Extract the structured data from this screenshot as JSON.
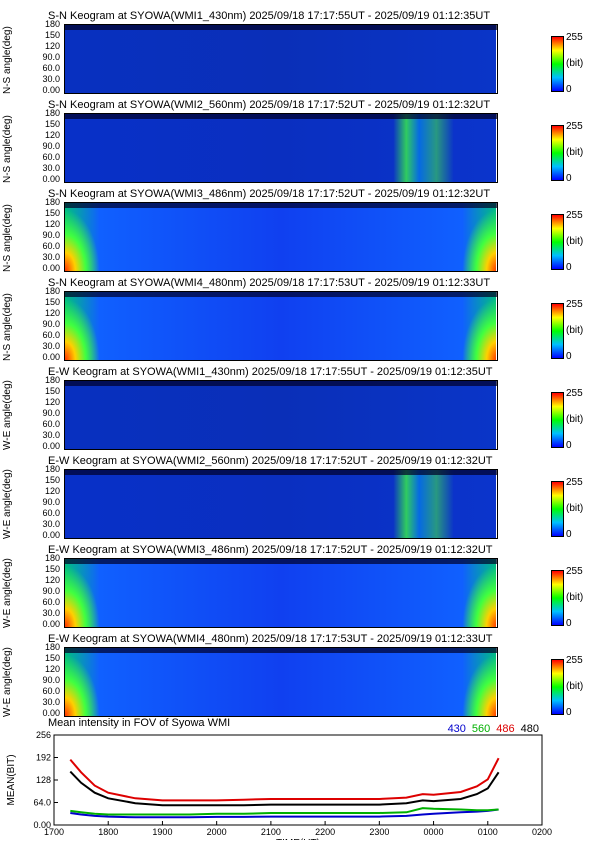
{
  "keograms": [
    {
      "title": "S-N Keogram at SYOWA(WMI1_430nm)    2025/09/18 17:17:55UT - 2025/09/19 01:12:35UT",
      "ylabel": "N-S angle(deg)",
      "variant": "dark"
    },
    {
      "title": "S-N Keogram at SYOWA(WMI2_560nm)    2025/09/18 17:17:52UT - 2025/09/19 01:12:32UT",
      "ylabel": "N-S angle(deg)",
      "variant": "aurora"
    },
    {
      "title": "S-N Keogram at SYOWA(WMI3_486nm)    2025/09/18 17:17:52UT - 2025/09/19 01:12:32UT",
      "ylabel": "N-S angle(deg)",
      "variant": "bright"
    },
    {
      "title": "S-N Keogram at SYOWA(WMI4_480nm)    2025/09/18 17:17:53UT - 2025/09/19 01:12:33UT",
      "ylabel": "N-S angle(deg)",
      "variant": "bright"
    },
    {
      "title": "E-W Keogram at SYOWA(WMI1_430nm)    2025/09/18 17:17:55UT - 2025/09/19 01:12:35UT",
      "ylabel": "W-E angle(deg)",
      "variant": "dark"
    },
    {
      "title": "E-W Keogram at SYOWA(WMI2_560nm)    2025/09/18 17:17:52UT - 2025/09/19 01:12:32UT",
      "ylabel": "W-E angle(deg)",
      "variant": "aurora"
    },
    {
      "title": "E-W Keogram at SYOWA(WMI3_486nm)    2025/09/18 17:17:52UT - 2025/09/19 01:12:32UT",
      "ylabel": "W-E angle(deg)",
      "variant": "bright"
    },
    {
      "title": "E-W Keogram at SYOWA(WMI4_480nm)    2025/09/18 17:17:53UT - 2025/09/19 01:12:33UT",
      "ylabel": "W-E angle(deg)",
      "variant": "bright"
    }
  ],
  "keogram_yticks": [
    "180",
    "150",
    "120",
    "90.0",
    "60.0",
    "30.0",
    "0.00"
  ],
  "colorbar": {
    "max": "255",
    "unit": "(bit)",
    "min": "0"
  },
  "chart_data": {
    "type": "line",
    "title": "Mean intensity in FOV of Syowa WMI",
    "xlabel": "TIME(UT)",
    "ylabel": "MEAN(BIT)",
    "x_ticks": [
      "1700",
      "1800",
      "1900",
      "2000",
      "2100",
      "2200",
      "2300",
      "0000",
      "0100",
      "0200"
    ],
    "y_ticks": [
      "256",
      "192",
      "128",
      "64.0",
      "0.00"
    ],
    "xlim": [
      17.0,
      26.0
    ],
    "ylim": [
      0,
      256
    ],
    "legend_position": "top-right",
    "x": [
      17.3,
      17.5,
      17.75,
      18.0,
      18.5,
      19.0,
      19.5,
      20.0,
      20.5,
      21.0,
      21.5,
      22.0,
      22.5,
      23.0,
      23.5,
      23.8,
      24.0,
      24.5,
      24.8,
      25.0,
      25.2
    ],
    "series": [
      {
        "name": "430",
        "color": "#0000cc",
        "values": [
          34,
          30,
          26,
          24,
          22,
          22,
          22,
          23,
          23,
          24,
          24,
          24,
          24,
          24,
          26,
          30,
          32,
          36,
          38,
          40,
          44
        ]
      },
      {
        "name": "560",
        "color": "#00b000",
        "values": [
          40,
          36,
          32,
          30,
          30,
          30,
          30,
          32,
          32,
          34,
          34,
          34,
          34,
          34,
          36,
          48,
          46,
          44,
          42,
          42,
          44
        ]
      },
      {
        "name": "486",
        "color": "#dd0000",
        "values": [
          186,
          150,
          112,
          92,
          76,
          70,
          70,
          70,
          72,
          74,
          74,
          74,
          74,
          74,
          78,
          88,
          86,
          94,
          110,
          130,
          190
        ]
      },
      {
        "name": "480",
        "color": "#000000",
        "values": [
          152,
          120,
          92,
          76,
          62,
          56,
          56,
          56,
          56,
          58,
          58,
          58,
          58,
          58,
          62,
          70,
          68,
          74,
          88,
          104,
          150
        ]
      }
    ]
  }
}
